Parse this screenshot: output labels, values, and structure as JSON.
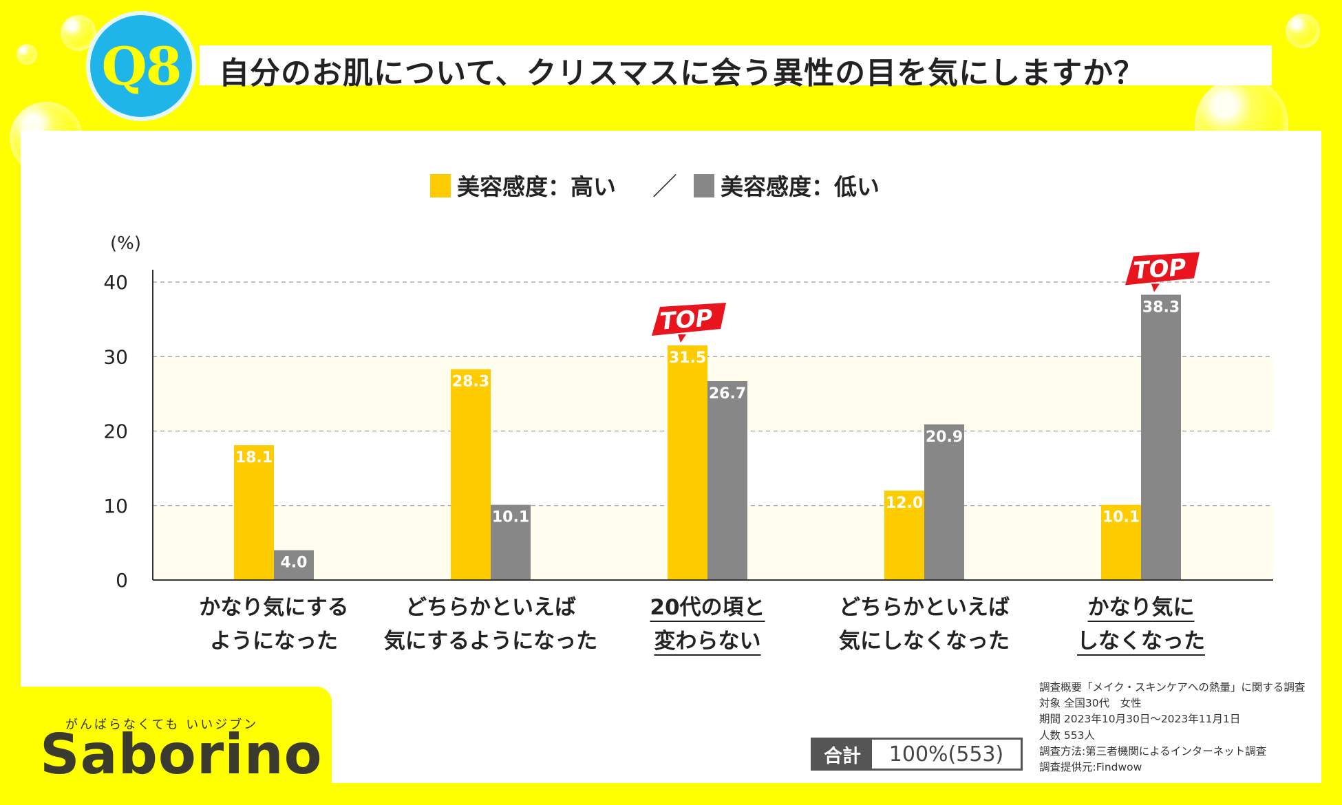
{
  "header": {
    "badge": "Q8",
    "question": "自分のお肌について、クリスマスに会う異性の目を気にしますか？"
  },
  "colors": {
    "high": "#ffcc00",
    "low": "#878787",
    "top_badge": "#e8141e",
    "background": "#ffff00"
  },
  "chart_data": {
    "type": "bar",
    "legend": {
      "text_high": "美容感度：高い",
      "separator": "／",
      "text_low": "美容感度：低い",
      "placement": "top-center"
    },
    "unit_label": "(%)",
    "ylim": [
      0,
      40
    ],
    "yticks": [
      "0",
      "10",
      "20",
      "30",
      "40"
    ],
    "grid": true,
    "categories": [
      [
        "かなり気にする",
        "ようになった"
      ],
      [
        "どちらかといえば",
        "気にするようになった"
      ],
      [
        "20代の頃と",
        "変わらない"
      ],
      [
        "どちらかといえば",
        "気にしなくなった"
      ],
      [
        "かなり気に",
        "しなくなった"
      ]
    ],
    "underlined_categories": [
      2,
      4
    ],
    "series": [
      {
        "name": "美容感度：高い",
        "values": [
          18.1,
          28.3,
          31.5,
          12.0,
          10.1
        ],
        "labels": [
          "18.1",
          "28.3",
          "31.5",
          "12.0",
          "10.1"
        ],
        "color": "#ffcc00"
      },
      {
        "name": "美容感度：低い",
        "values": [
          4.0,
          10.1,
          26.7,
          20.9,
          38.3
        ],
        "labels": [
          "4.0",
          "10.1",
          "26.7",
          "20.9",
          "38.3"
        ],
        "color": "#878787"
      }
    ],
    "top_markers": [
      {
        "text": "TOP",
        "series": 0,
        "category": 2
      },
      {
        "text": "TOP",
        "series": 1,
        "category": 4
      }
    ]
  },
  "total": {
    "label": "合計",
    "value": "100%(553)"
  },
  "survey": [
    "調査概要「メイク・スキンケアへの熱量」に関する調査",
    "対象 全国30代　女性",
    "期間 2023年10月30日～2023年11月1日",
    "人数 553人",
    "調査方法:第三者機関によるインターネット調査",
    "調査提供元:Findwow"
  ],
  "brand": {
    "tagline": "がんばらなくても いいジブン",
    "name": "Saborino"
  }
}
